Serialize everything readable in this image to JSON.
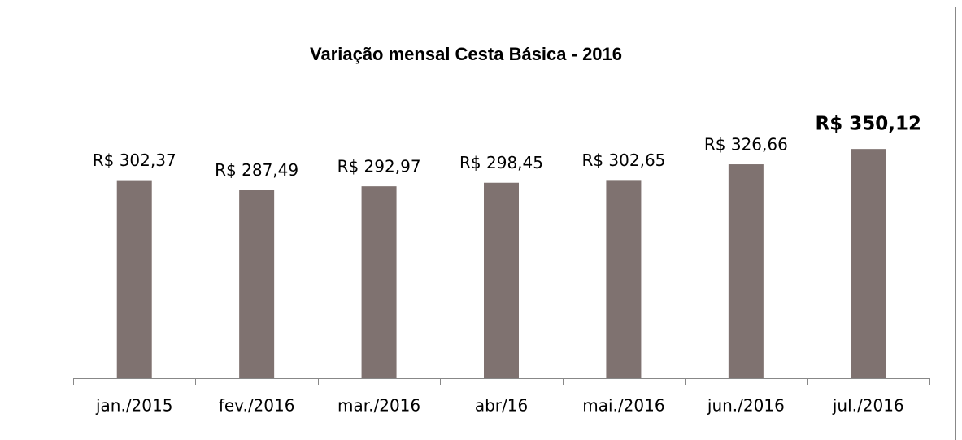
{
  "chart_data": {
    "type": "bar",
    "title": "Variação mensal Cesta Básica - 2016",
    "categories": [
      "jan./2015",
      "fev./2016",
      "mar./2016",
      "abr/16",
      "mai./2016",
      "jun./2016",
      "jul./2016"
    ],
    "values": [
      302.37,
      287.49,
      292.97,
      298.45,
      302.65,
      326.66,
      350.12
    ],
    "value_labels": [
      "R$ 302,37",
      "R$ 287,49",
      "R$ 292,97",
      "R$ 298,45",
      "R$ 302,65",
      "R$ 326,66",
      "R$ 350,12"
    ],
    "color": "#7f7270",
    "ylim": [
      0,
      400
    ]
  }
}
